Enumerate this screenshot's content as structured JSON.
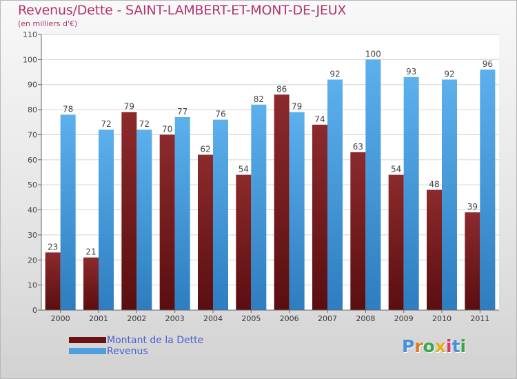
{
  "chart_data": {
    "type": "bar",
    "title": "Revenus/Dette - SAINT-LAMBERT-ET-MONT-DE-JEUX",
    "subtitle": "(en milliers d'€)",
    "categories": [
      "2000",
      "2001",
      "2002",
      "2003",
      "2004",
      "2005",
      "2006",
      "2007",
      "2008",
      "2009",
      "2010",
      "2011"
    ],
    "series": [
      {
        "name": "Montant de la Dette",
        "color": "#7a1f22",
        "values": [
          23,
          21,
          79,
          70,
          62,
          54,
          86,
          74,
          63,
          54,
          48,
          39
        ]
      },
      {
        "name": "Revenus",
        "color": "#4da0dd",
        "values": [
          78,
          72,
          72,
          77,
          76,
          82,
          79,
          92,
          100,
          93,
          92,
          96
        ]
      }
    ],
    "ylim": [
      0,
      110
    ],
    "yticks": [
      0,
      10,
      20,
      30,
      40,
      50,
      60,
      70,
      80,
      90,
      100,
      110
    ],
    "grid": true,
    "legend_position": "bottom-left"
  },
  "logo": {
    "letters": [
      "P",
      "r",
      "o",
      "x",
      "i",
      "t",
      "i"
    ],
    "colors": [
      "#4a90d9",
      "#e07a1f",
      "#3aa64a",
      "#e0b020",
      "#d93a6a",
      "#4a90d9",
      "#3aa64a"
    ]
  }
}
